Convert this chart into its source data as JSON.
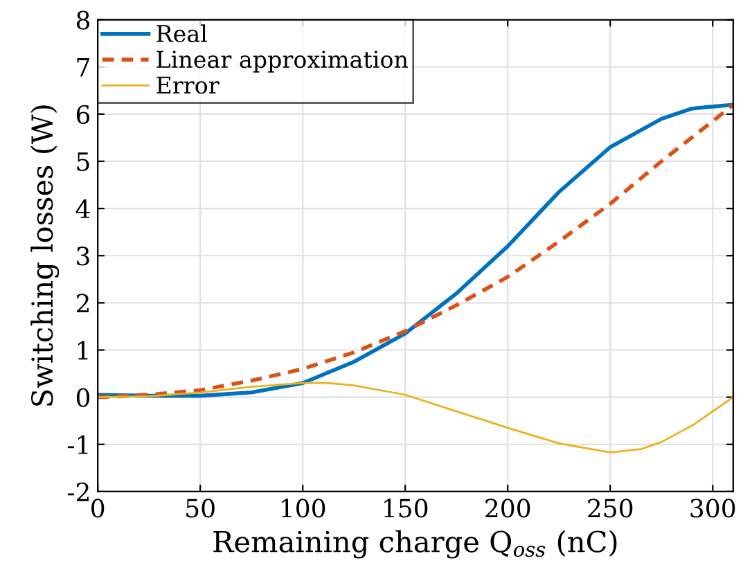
{
  "chart_data": {
    "type": "line",
    "xlabel": "Remaining charge Q$_{oss}$ (nC)",
    "ylabel": "Switching losses (W)",
    "xlim": [
      0,
      310
    ],
    "ylim": [
      -2,
      8
    ],
    "xticks": [
      0,
      50,
      100,
      150,
      200,
      250,
      300
    ],
    "yticks": [
      -2,
      -1,
      0,
      1,
      2,
      3,
      4,
      5,
      6,
      7,
      8
    ],
    "grid": true,
    "legend": "top left",
    "series": [
      {
        "name": "Real",
        "color": "#0072bd",
        "line_style": "solid",
        "x": [
          0,
          25,
          50,
          75,
          100,
          125,
          150,
          175,
          200,
          225,
          250,
          275,
          290,
          310
        ],
        "values": [
          0.05,
          0.03,
          0.03,
          0.1,
          0.3,
          0.75,
          1.35,
          2.2,
          3.2,
          4.35,
          5.3,
          5.9,
          6.12,
          6.2
        ]
      },
      {
        "name": "Linear approximation",
        "color": "#d95319",
        "line_style": "dashed",
        "x": [
          0,
          25,
          50,
          75,
          100,
          125,
          150,
          175,
          200,
          225,
          250,
          275,
          300,
          310
        ],
        "values": [
          0,
          0.05,
          0.15,
          0.35,
          0.6,
          0.95,
          1.4,
          1.95,
          2.55,
          3.3,
          4.1,
          5.0,
          5.85,
          6.2
        ]
      },
      {
        "name": "Error",
        "color": "#edb120",
        "line_style": "solid",
        "x": [
          0,
          25,
          50,
          75,
          100,
          112,
          125,
          150,
          175,
          200,
          225,
          250,
          265,
          275,
          290,
          310
        ],
        "values": [
          0,
          0.02,
          0.1,
          0.22,
          0.3,
          0.3,
          0.25,
          0.05,
          -0.3,
          -0.65,
          -0.98,
          -1.17,
          -1.1,
          -0.95,
          -0.6,
          0
        ]
      }
    ]
  }
}
